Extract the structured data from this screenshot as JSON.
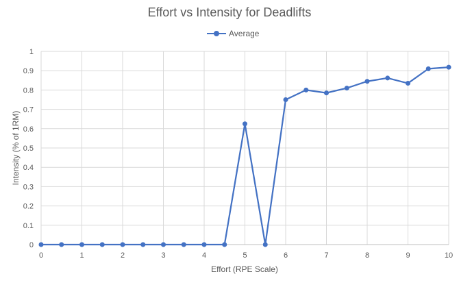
{
  "chart_data": {
    "type": "line",
    "title": "Effort vs Intensity for Deadlifts",
    "xlabel": "Effort (RPE Scale)",
    "ylabel": "Intensity (% of 1RM)",
    "xlim": [
      0,
      10
    ],
    "ylim": [
      0,
      1
    ],
    "x_ticks": [
      "0",
      "1",
      "2",
      "3",
      "4",
      "5",
      "6",
      "7",
      "8",
      "9",
      "10"
    ],
    "y_ticks": [
      "0",
      "0.1",
      "0.2",
      "0.3",
      "0.4",
      "0.5",
      "0.6",
      "0.7",
      "0.8",
      "0.9",
      "1"
    ],
    "grid": true,
    "legend_position": "top",
    "series": [
      {
        "name": "Average",
        "color": "#4472C4",
        "x": [
          0,
          0.5,
          1,
          1.5,
          2,
          2.5,
          3,
          3.5,
          4,
          4.5,
          5,
          5.5,
          6,
          6.5,
          7,
          7.5,
          8,
          8.5,
          9,
          9.5,
          10
        ],
        "y": [
          0,
          0,
          0,
          0,
          0,
          0,
          0,
          0,
          0,
          0,
          0.625,
          0,
          0.75,
          0.8,
          0.785,
          0.81,
          0.845,
          0.862,
          0.835,
          0.91,
          0.918
        ]
      }
    ]
  }
}
